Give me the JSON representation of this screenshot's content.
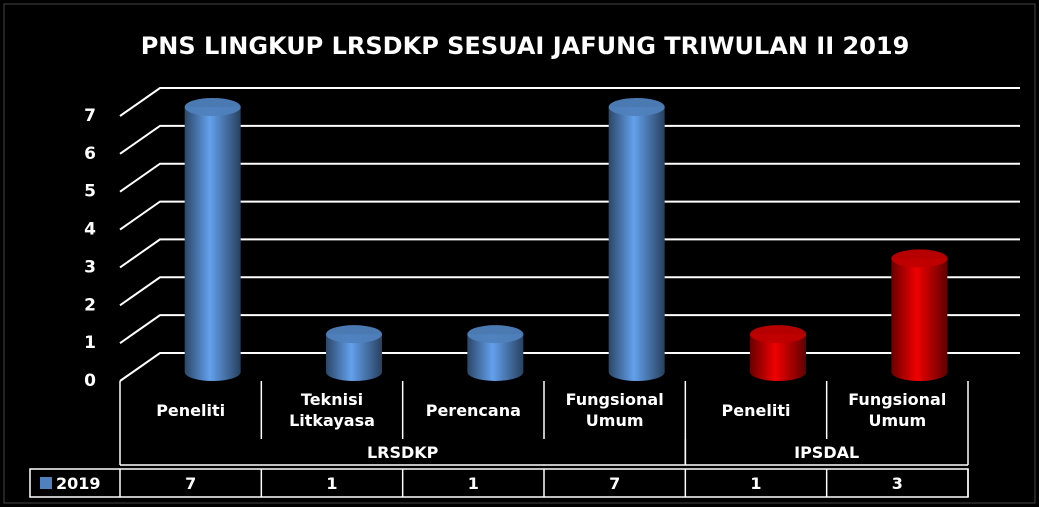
{
  "chart_data": {
    "type": "cylinder",
    "title": "PNS LINGKUP LRSDKP SESUAI JAFUNG  TRIWULAN II 2019",
    "categories": [
      "Peneliti",
      "Teknisi Litkayasa",
      "Perencana",
      "Fungsional Umum",
      "Peneliti",
      "Fungsional Umum"
    ],
    "groups": [
      {
        "label": "LRSDKP",
        "span": 4
      },
      {
        "label": "IPSDAL",
        "span": 2
      }
    ],
    "series": [
      {
        "name": "2019",
        "color": "#4f81bd",
        "point_colors": [
          "#4f81bd",
          "#4f81bd",
          "#4f81bd",
          "#4f81bd",
          "#c00000",
          "#c00000"
        ],
        "values": [
          7,
          1,
          1,
          7,
          1,
          3
        ]
      }
    ],
    "ylim": [
      0,
      7
    ],
    "yticks": [
      0,
      1,
      2,
      3,
      4,
      5,
      6,
      7
    ],
    "grid": true,
    "data_table": true
  }
}
